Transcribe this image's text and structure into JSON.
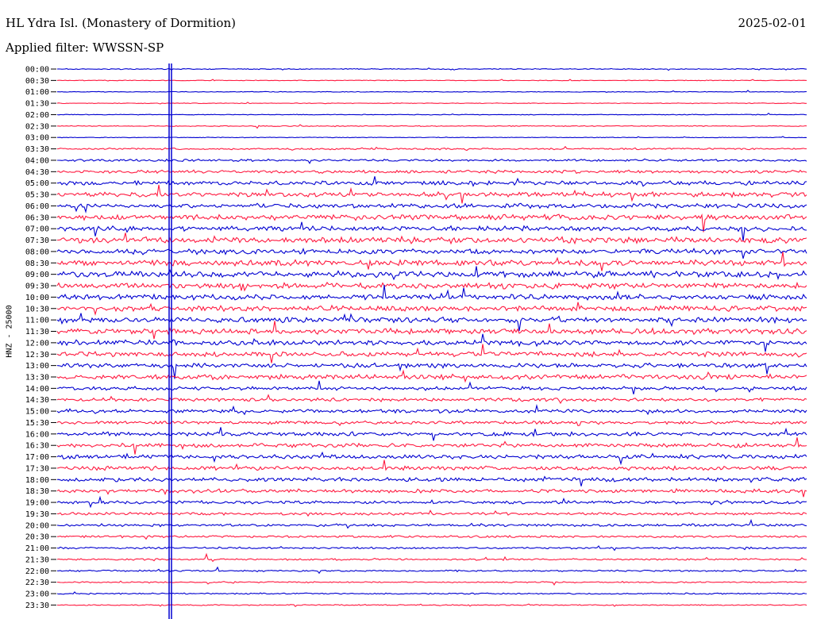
{
  "header": {
    "station": "HL Ydra Isl. (Monastery of Dormition)",
    "date": "2025-02-01",
    "filter": "Applied filter: WWSSN-SP"
  },
  "colors": {
    "odd": "#0000d0",
    "even": "#ff1a40",
    "axis": "#000000"
  },
  "chart_data": {
    "type": "helicorder",
    "ylabel": "HNZ - 25000",
    "rows": [
      "00:00",
      "00:30",
      "01:00",
      "01:30",
      "02:00",
      "02:30",
      "03:00",
      "03:30",
      "04:00",
      "04:30",
      "05:00",
      "05:30",
      "06:00",
      "06:30",
      "07:00",
      "07:30",
      "08:00",
      "08:30",
      "09:00",
      "09:30",
      "10:00",
      "10:30",
      "11:00",
      "11:30",
      "12:00",
      "12:30",
      "13:00",
      "13:30",
      "14:00",
      "14:30",
      "15:00",
      "15:30",
      "16:00",
      "16:30",
      "17:00",
      "17:30",
      "18:00",
      "18:30",
      "19:00",
      "19:30",
      "20:00",
      "20:30",
      "21:00",
      "21:30",
      "22:00",
      "22:30",
      "23:00",
      "23:30"
    ],
    "noise_level": [
      0.4,
      0.3,
      0.3,
      0.3,
      0.3,
      0.4,
      0.3,
      0.8,
      1.0,
      1.4,
      1.8,
      2.2,
      2.0,
      2.4,
      2.2,
      2.8,
      2.4,
      2.6,
      2.8,
      2.6,
      2.4,
      2.4,
      2.4,
      2.6,
      2.4,
      2.2,
      2.0,
      2.2,
      1.6,
      1.6,
      1.6,
      1.4,
      1.8,
      1.8,
      1.8,
      1.8,
      1.8,
      1.6,
      1.4,
      1.2,
      1.2,
      1.0,
      0.8,
      0.8,
      0.7,
      0.6,
      0.6,
      0.5
    ]
  }
}
